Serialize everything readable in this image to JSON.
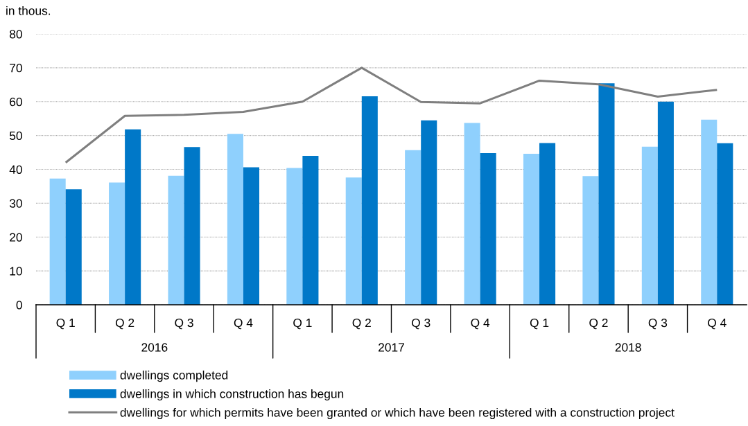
{
  "chart_data": {
    "type": "bar",
    "ylabel": "in thous.",
    "categories": [
      "Q 1",
      "Q 2",
      "Q 3",
      "Q 4",
      "Q 1",
      "Q 2",
      "Q 3",
      "Q 4",
      "Q 1",
      "Q 2",
      "Q 3",
      "Q 4"
    ],
    "series": [
      {
        "name": "dwellings completed",
        "color": "#8fd0fd",
        "values": [
          37.3,
          36.1,
          38.1,
          50.5,
          40.4,
          37.6,
          45.7,
          53.7,
          44.6,
          38.0,
          46.7,
          54.7
        ]
      },
      {
        "name": "dwellings in which construction has begun",
        "color": "#0078c8",
        "values": [
          34.1,
          51.8,
          46.6,
          40.6,
          44.0,
          61.6,
          54.5,
          44.8,
          47.8,
          65.4,
          60.0,
          47.7
        ]
      },
      {
        "name": "dwellings for which permits have been granted or which have been registered with a construction project",
        "type": "line",
        "color": "#7f7f7f",
        "values": [
          42.0,
          55.8,
          56.1,
          57.0,
          60.0,
          70.0,
          59.9,
          59.5,
          66.2,
          65.1,
          61.5,
          63.5
        ]
      }
    ],
    "ylim": [
      0,
      80
    ],
    "yticks": [
      0,
      10,
      20,
      30,
      40,
      50,
      60,
      70,
      80
    ],
    "grid": "y",
    "legend": "bottom",
    "annotations": [
      "2016",
      "2017",
      "2018"
    ]
  }
}
